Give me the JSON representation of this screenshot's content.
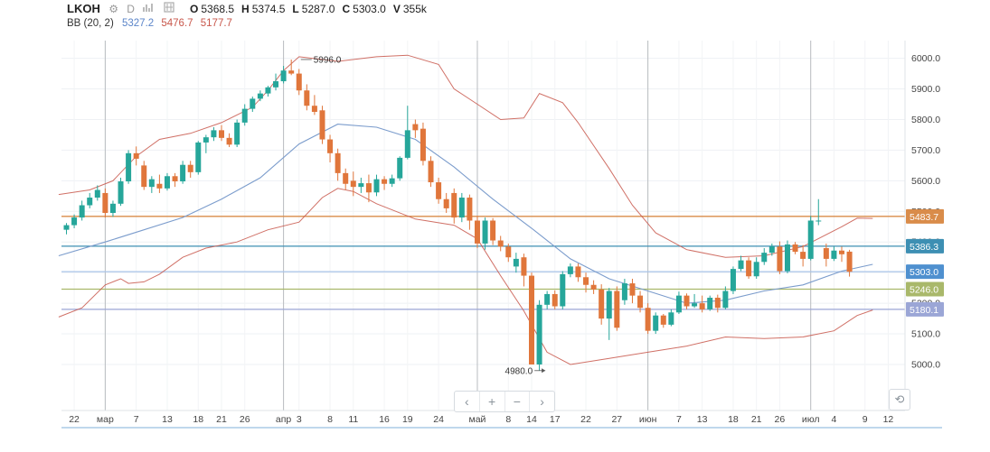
{
  "legend": {
    "symbol": "LKOH",
    "settings_glyph": "⚙",
    "interval": "D",
    "ohlc": [
      {
        "key": "O",
        "value": "5368.5"
      },
      {
        "key": "H",
        "value": "5374.5"
      },
      {
        "key": "L",
        "value": "5287.0"
      },
      {
        "key": "C",
        "value": "5303.0"
      },
      {
        "key": "V",
        "value": "355k"
      }
    ],
    "bb_name": "BB (20, 2)",
    "bb_middle": "5327.2",
    "bb_upper": "5476.7",
    "bb_lower": "5177.7"
  },
  "toolbar": {
    "scroll_left": "‹",
    "zoom_in": "+",
    "zoom_out": "−",
    "scroll_right": "›",
    "reset": "⟲"
  },
  "colors": {
    "up": "#26a69a",
    "down": "#e0763b",
    "bb_mid": "#7b9ccc",
    "bb_band": "#c8574b",
    "price_label_text": "#ffffff"
  },
  "chart_data": {
    "type": "candlestick",
    "ylim": [
      4940,
      6070
    ],
    "y_ticks": [
      5000,
      5100,
      5200,
      5300,
      5400,
      5500,
      5600,
      5700,
      5800,
      5900,
      6000
    ],
    "x_tick_labels": [
      {
        "i": 1,
        "label": "22"
      },
      {
        "i": 5,
        "label": "мар"
      },
      {
        "i": 9,
        "label": "7"
      },
      {
        "i": 13,
        "label": "13"
      },
      {
        "i": 17,
        "label": "18"
      },
      {
        "i": 20,
        "label": "21"
      },
      {
        "i": 23,
        "label": "26"
      },
      {
        "i": 28,
        "label": "апр"
      },
      {
        "i": 30,
        "label": "3"
      },
      {
        "i": 34,
        "label": "8"
      },
      {
        "i": 37,
        "label": "11"
      },
      {
        "i": 41,
        "label": "16"
      },
      {
        "i": 44,
        "label": "19"
      },
      {
        "i": 48,
        "label": "24"
      },
      {
        "i": 53,
        "label": "май"
      },
      {
        "i": 57,
        "label": "8"
      },
      {
        "i": 60,
        "label": "14"
      },
      {
        "i": 63,
        "label": "17"
      },
      {
        "i": 67,
        "label": "22"
      },
      {
        "i": 71,
        "label": "27"
      },
      {
        "i": 75,
        "label": "июн"
      },
      {
        "i": 79,
        "label": "7"
      },
      {
        "i": 82,
        "label": "13"
      },
      {
        "i": 86,
        "label": "18"
      },
      {
        "i": 89,
        "label": "21"
      },
      {
        "i": 92,
        "label": "26"
      },
      {
        "i": 96,
        "label": "июл"
      },
      {
        "i": 99,
        "label": "4"
      },
      {
        "i": 103,
        "label": "9"
      },
      {
        "i": 106,
        "label": "12"
      }
    ],
    "vertical_markers": [
      5,
      28,
      53,
      75,
      96
    ],
    "horizontal_lines": [
      {
        "value": 5483.7,
        "label": "5483.7",
        "color": "#d98c4a"
      },
      {
        "value": 5386.3,
        "label": "5386.3",
        "color": "#3d8fb3"
      },
      {
        "value": 5303.0,
        "label": "5303.0",
        "color": "#a9c4e8",
        "label_bg": "#4f90cf"
      },
      {
        "value": 5246.0,
        "label": "5246.0",
        "color": "#a9b86a"
      },
      {
        "value": 5180.1,
        "label": "5180.1",
        "color": "#9ba6d6"
      }
    ],
    "annotations": [
      {
        "i": 30,
        "value": 5996.0,
        "label": "5996.0",
        "side": "right"
      },
      {
        "i": 62,
        "value": 4980.0,
        "label": "4980.0",
        "side": "left"
      }
    ],
    "candles": [
      {
        "o": 5440,
        "h": 5462,
        "l": 5425,
        "c": 5455
      },
      {
        "o": 5455,
        "h": 5490,
        "l": 5445,
        "c": 5480
      },
      {
        "o": 5480,
        "h": 5535,
        "l": 5470,
        "c": 5520
      },
      {
        "o": 5520,
        "h": 5560,
        "l": 5510,
        "c": 5545
      },
      {
        "o": 5545,
        "h": 5585,
        "l": 5535,
        "c": 5570
      },
      {
        "o": 5560,
        "h": 5575,
        "l": 5480,
        "c": 5495
      },
      {
        "o": 5495,
        "h": 5535,
        "l": 5482,
        "c": 5525
      },
      {
        "o": 5525,
        "h": 5610,
        "l": 5518,
        "c": 5598
      },
      {
        "o": 5598,
        "h": 5700,
        "l": 5590,
        "c": 5690
      },
      {
        "o": 5690,
        "h": 5712,
        "l": 5650,
        "c": 5672
      },
      {
        "o": 5650,
        "h": 5665,
        "l": 5570,
        "c": 5580
      },
      {
        "o": 5580,
        "h": 5615,
        "l": 5560,
        "c": 5605
      },
      {
        "o": 5590,
        "h": 5620,
        "l": 5560,
        "c": 5575
      },
      {
        "o": 5575,
        "h": 5625,
        "l": 5568,
        "c": 5615
      },
      {
        "o": 5615,
        "h": 5625,
        "l": 5580,
        "c": 5598
      },
      {
        "o": 5598,
        "h": 5665,
        "l": 5590,
        "c": 5652
      },
      {
        "o": 5652,
        "h": 5665,
        "l": 5610,
        "c": 5628
      },
      {
        "o": 5628,
        "h": 5730,
        "l": 5620,
        "c": 5725
      },
      {
        "o": 5725,
        "h": 5750,
        "l": 5690,
        "c": 5742
      },
      {
        "o": 5742,
        "h": 5775,
        "l": 5730,
        "c": 5765
      },
      {
        "o": 5765,
        "h": 5782,
        "l": 5730,
        "c": 5740
      },
      {
        "o": 5740,
        "h": 5755,
        "l": 5710,
        "c": 5718
      },
      {
        "o": 5718,
        "h": 5800,
        "l": 5710,
        "c": 5790
      },
      {
        "o": 5790,
        "h": 5850,
        "l": 5780,
        "c": 5835
      },
      {
        "o": 5835,
        "h": 5875,
        "l": 5825,
        "c": 5868
      },
      {
        "o": 5868,
        "h": 5895,
        "l": 5860,
        "c": 5885
      },
      {
        "o": 5885,
        "h": 5910,
        "l": 5875,
        "c": 5905
      },
      {
        "o": 5905,
        "h": 5950,
        "l": 5895,
        "c": 5925
      },
      {
        "o": 5925,
        "h": 5975,
        "l": 5918,
        "c": 5960
      },
      {
        "o": 5960,
        "h": 5996,
        "l": 5945,
        "c": 5950
      },
      {
        "o": 5950,
        "h": 5965,
        "l": 5880,
        "c": 5895
      },
      {
        "o": 5895,
        "h": 5915,
        "l": 5830,
        "c": 5845
      },
      {
        "o": 5845,
        "h": 5880,
        "l": 5815,
        "c": 5825
      },
      {
        "o": 5830,
        "h": 5845,
        "l": 5720,
        "c": 5735
      },
      {
        "o": 5735,
        "h": 5750,
        "l": 5660,
        "c": 5690
      },
      {
        "o": 5690,
        "h": 5705,
        "l": 5600,
        "c": 5625
      },
      {
        "o": 5625,
        "h": 5640,
        "l": 5570,
        "c": 5590
      },
      {
        "o": 5600,
        "h": 5630,
        "l": 5550,
        "c": 5580
      },
      {
        "o": 5580,
        "h": 5610,
        "l": 5560,
        "c": 5592
      },
      {
        "o": 5592,
        "h": 5620,
        "l": 5530,
        "c": 5562
      },
      {
        "o": 5562,
        "h": 5620,
        "l": 5550,
        "c": 5605
      },
      {
        "o": 5605,
        "h": 5615,
        "l": 5570,
        "c": 5590
      },
      {
        "o": 5590,
        "h": 5620,
        "l": 5580,
        "c": 5608
      },
      {
        "o": 5608,
        "h": 5680,
        "l": 5600,
        "c": 5675
      },
      {
        "o": 5675,
        "h": 5845,
        "l": 5670,
        "c": 5765
      },
      {
        "o": 5785,
        "h": 5800,
        "l": 5740,
        "c": 5765
      },
      {
        "o": 5770,
        "h": 5790,
        "l": 5650,
        "c": 5665
      },
      {
        "o": 5665,
        "h": 5680,
        "l": 5580,
        "c": 5595
      },
      {
        "o": 5595,
        "h": 5610,
        "l": 5525,
        "c": 5540
      },
      {
        "o": 5540,
        "h": 5560,
        "l": 5495,
        "c": 5510
      },
      {
        "o": 5560,
        "h": 5575,
        "l": 5460,
        "c": 5480
      },
      {
        "o": 5480,
        "h": 5560,
        "l": 5465,
        "c": 5545
      },
      {
        "o": 5545,
        "h": 5555,
        "l": 5440,
        "c": 5470
      },
      {
        "o": 5470,
        "h": 5485,
        "l": 5380,
        "c": 5395
      },
      {
        "o": 5395,
        "h": 5480,
        "l": 5375,
        "c": 5470
      },
      {
        "o": 5470,
        "h": 5478,
        "l": 5390,
        "c": 5405
      },
      {
        "o": 5405,
        "h": 5420,
        "l": 5370,
        "c": 5385
      },
      {
        "o": 5385,
        "h": 5395,
        "l": 5335,
        "c": 5350
      },
      {
        "o": 5320,
        "h": 5365,
        "l": 5300,
        "c": 5345
      },
      {
        "o": 5350,
        "h": 5362,
        "l": 5255,
        "c": 5290
      },
      {
        "o": 5290,
        "h": 5300,
        "l": 5000,
        "c": 5000
      },
      {
        "o": 5000,
        "h": 5210,
        "l": 4980,
        "c": 5195
      },
      {
        "o": 5195,
        "h": 5240,
        "l": 5180,
        "c": 5230
      },
      {
        "o": 5230,
        "h": 5242,
        "l": 5180,
        "c": 5190
      },
      {
        "o": 5190,
        "h": 5305,
        "l": 5180,
        "c": 5295
      },
      {
        "o": 5295,
        "h": 5330,
        "l": 5285,
        "c": 5320
      },
      {
        "o": 5320,
        "h": 5330,
        "l": 5270,
        "c": 5285
      },
      {
        "o": 5285,
        "h": 5300,
        "l": 5235,
        "c": 5260
      },
      {
        "o": 5260,
        "h": 5275,
        "l": 5230,
        "c": 5245
      },
      {
        "o": 5245,
        "h": 5262,
        "l": 5130,
        "c": 5150
      },
      {
        "o": 5150,
        "h": 5250,
        "l": 5080,
        "c": 5240
      },
      {
        "o": 5240,
        "h": 5255,
        "l": 5110,
        "c": 5120
      },
      {
        "o": 5210,
        "h": 5280,
        "l": 5195,
        "c": 5265
      },
      {
        "o": 5265,
        "h": 5280,
        "l": 5200,
        "c": 5225
      },
      {
        "o": 5225,
        "h": 5240,
        "l": 5170,
        "c": 5185
      },
      {
        "o": 5185,
        "h": 5200,
        "l": 5100,
        "c": 5110
      },
      {
        "o": 5110,
        "h": 5170,
        "l": 5100,
        "c": 5160
      },
      {
        "o": 5160,
        "h": 5165,
        "l": 5120,
        "c": 5130
      },
      {
        "o": 5130,
        "h": 5180,
        "l": 5125,
        "c": 5170
      },
      {
        "o": 5170,
        "h": 5238,
        "l": 5165,
        "c": 5225
      },
      {
        "o": 5225,
        "h": 5232,
        "l": 5180,
        "c": 5190
      },
      {
        "o": 5190,
        "h": 5230,
        "l": 5185,
        "c": 5200
      },
      {
        "o": 5200,
        "h": 5225,
        "l": 5170,
        "c": 5180
      },
      {
        "o": 5180,
        "h": 5225,
        "l": 5175,
        "c": 5218
      },
      {
        "o": 5218,
        "h": 5228,
        "l": 5170,
        "c": 5185
      },
      {
        "o": 5185,
        "h": 5255,
        "l": 5180,
        "c": 5240
      },
      {
        "o": 5240,
        "h": 5320,
        "l": 5230,
        "c": 5312
      },
      {
        "o": 5312,
        "h": 5355,
        "l": 5305,
        "c": 5340
      },
      {
        "o": 5340,
        "h": 5350,
        "l": 5280,
        "c": 5288
      },
      {
        "o": 5288,
        "h": 5350,
        "l": 5280,
        "c": 5335
      },
      {
        "o": 5335,
        "h": 5380,
        "l": 5325,
        "c": 5365
      },
      {
        "o": 5365,
        "h": 5395,
        "l": 5355,
        "c": 5385
      },
      {
        "o": 5385,
        "h": 5402,
        "l": 5295,
        "c": 5305
      },
      {
        "o": 5305,
        "h": 5405,
        "l": 5298,
        "c": 5392
      },
      {
        "o": 5392,
        "h": 5400,
        "l": 5360,
        "c": 5368
      },
      {
        "o": 5368,
        "h": 5390,
        "l": 5320,
        "c": 5345
      },
      {
        "o": 5345,
        "h": 5485,
        "l": 5340,
        "c": 5470
      },
      {
        "o": 5470,
        "h": 5540,
        "l": 5455,
        "c": 5470
      },
      {
        "o": 5380,
        "h": 5395,
        "l": 5320,
        "c": 5345
      },
      {
        "o": 5345,
        "h": 5385,
        "l": 5338,
        "c": 5372
      },
      {
        "o": 5372,
        "h": 5385,
        "l": 5335,
        "c": 5360
      },
      {
        "o": 5368.5,
        "h": 5374.5,
        "l": 5287,
        "c": 5303
      }
    ],
    "bb_middle_series": [
      {
        "i": -1,
        "v": 5355
      },
      {
        "i": 5,
        "v": 5400
      },
      {
        "i": 10,
        "v": 5440
      },
      {
        "i": 15,
        "v": 5480
      },
      {
        "i": 20,
        "v": 5540
      },
      {
        "i": 25,
        "v": 5610
      },
      {
        "i": 30,
        "v": 5720
      },
      {
        "i": 35,
        "v": 5785
      },
      {
        "i": 40,
        "v": 5775
      },
      {
        "i": 45,
        "v": 5735
      },
      {
        "i": 50,
        "v": 5645
      },
      {
        "i": 55,
        "v": 5540
      },
      {
        "i": 60,
        "v": 5445
      },
      {
        "i": 65,
        "v": 5345
      },
      {
        "i": 70,
        "v": 5280
      },
      {
        "i": 75,
        "v": 5240
      },
      {
        "i": 80,
        "v": 5200
      },
      {
        "i": 85,
        "v": 5210
      },
      {
        "i": 90,
        "v": 5240
      },
      {
        "i": 95,
        "v": 5260
      },
      {
        "i": 100,
        "v": 5305
      },
      {
        "i": 104,
        "v": 5327
      }
    ],
    "bb_upper_series": [
      {
        "i": -1,
        "v": 5555
      },
      {
        "i": 3,
        "v": 5570
      },
      {
        "i": 6,
        "v": 5600
      },
      {
        "i": 9,
        "v": 5680
      },
      {
        "i": 12,
        "v": 5735
      },
      {
        "i": 16,
        "v": 5755
      },
      {
        "i": 20,
        "v": 5790
      },
      {
        "i": 24,
        "v": 5840
      },
      {
        "i": 26,
        "v": 5895
      },
      {
        "i": 28,
        "v": 5960
      },
      {
        "i": 30,
        "v": 6005
      },
      {
        "i": 35,
        "v": 5990
      },
      {
        "i": 40,
        "v": 6005
      },
      {
        "i": 44,
        "v": 6010
      },
      {
        "i": 48,
        "v": 5980
      },
      {
        "i": 50,
        "v": 5900
      },
      {
        "i": 53,
        "v": 5850
      },
      {
        "i": 56,
        "v": 5800
      },
      {
        "i": 59,
        "v": 5805
      },
      {
        "i": 61,
        "v": 5885
      },
      {
        "i": 64,
        "v": 5855
      },
      {
        "i": 66,
        "v": 5790
      },
      {
        "i": 70,
        "v": 5640
      },
      {
        "i": 73,
        "v": 5520
      },
      {
        "i": 76,
        "v": 5430
      },
      {
        "i": 80,
        "v": 5375
      },
      {
        "i": 85,
        "v": 5350
      },
      {
        "i": 90,
        "v": 5355
      },
      {
        "i": 95,
        "v": 5385
      },
      {
        "i": 100,
        "v": 5450
      },
      {
        "i": 102,
        "v": 5478
      },
      {
        "i": 104,
        "v": 5477
      }
    ],
    "bb_lower_series": [
      {
        "i": -1,
        "v": 5155
      },
      {
        "i": 2,
        "v": 5185
      },
      {
        "i": 5,
        "v": 5260
      },
      {
        "i": 7,
        "v": 5280
      },
      {
        "i": 8,
        "v": 5265
      },
      {
        "i": 10,
        "v": 5270
      },
      {
        "i": 12,
        "v": 5295
      },
      {
        "i": 15,
        "v": 5350
      },
      {
        "i": 18,
        "v": 5380
      },
      {
        "i": 22,
        "v": 5400
      },
      {
        "i": 26,
        "v": 5440
      },
      {
        "i": 30,
        "v": 5465
      },
      {
        "i": 33,
        "v": 5545
      },
      {
        "i": 35,
        "v": 5575
      },
      {
        "i": 37,
        "v": 5565
      },
      {
        "i": 40,
        "v": 5525
      },
      {
        "i": 45,
        "v": 5475
      },
      {
        "i": 50,
        "v": 5455
      },
      {
        "i": 53,
        "v": 5410
      },
      {
        "i": 56,
        "v": 5290
      },
      {
        "i": 59,
        "v": 5175
      },
      {
        "i": 62,
        "v": 5040
      },
      {
        "i": 65,
        "v": 5000
      },
      {
        "i": 70,
        "v": 5020
      },
      {
        "i": 75,
        "v": 5040
      },
      {
        "i": 80,
        "v": 5060
      },
      {
        "i": 85,
        "v": 5090
      },
      {
        "i": 90,
        "v": 5085
      },
      {
        "i": 95,
        "v": 5090
      },
      {
        "i": 99,
        "v": 5110
      },
      {
        "i": 102,
        "v": 5160
      },
      {
        "i": 104,
        "v": 5178
      }
    ]
  }
}
